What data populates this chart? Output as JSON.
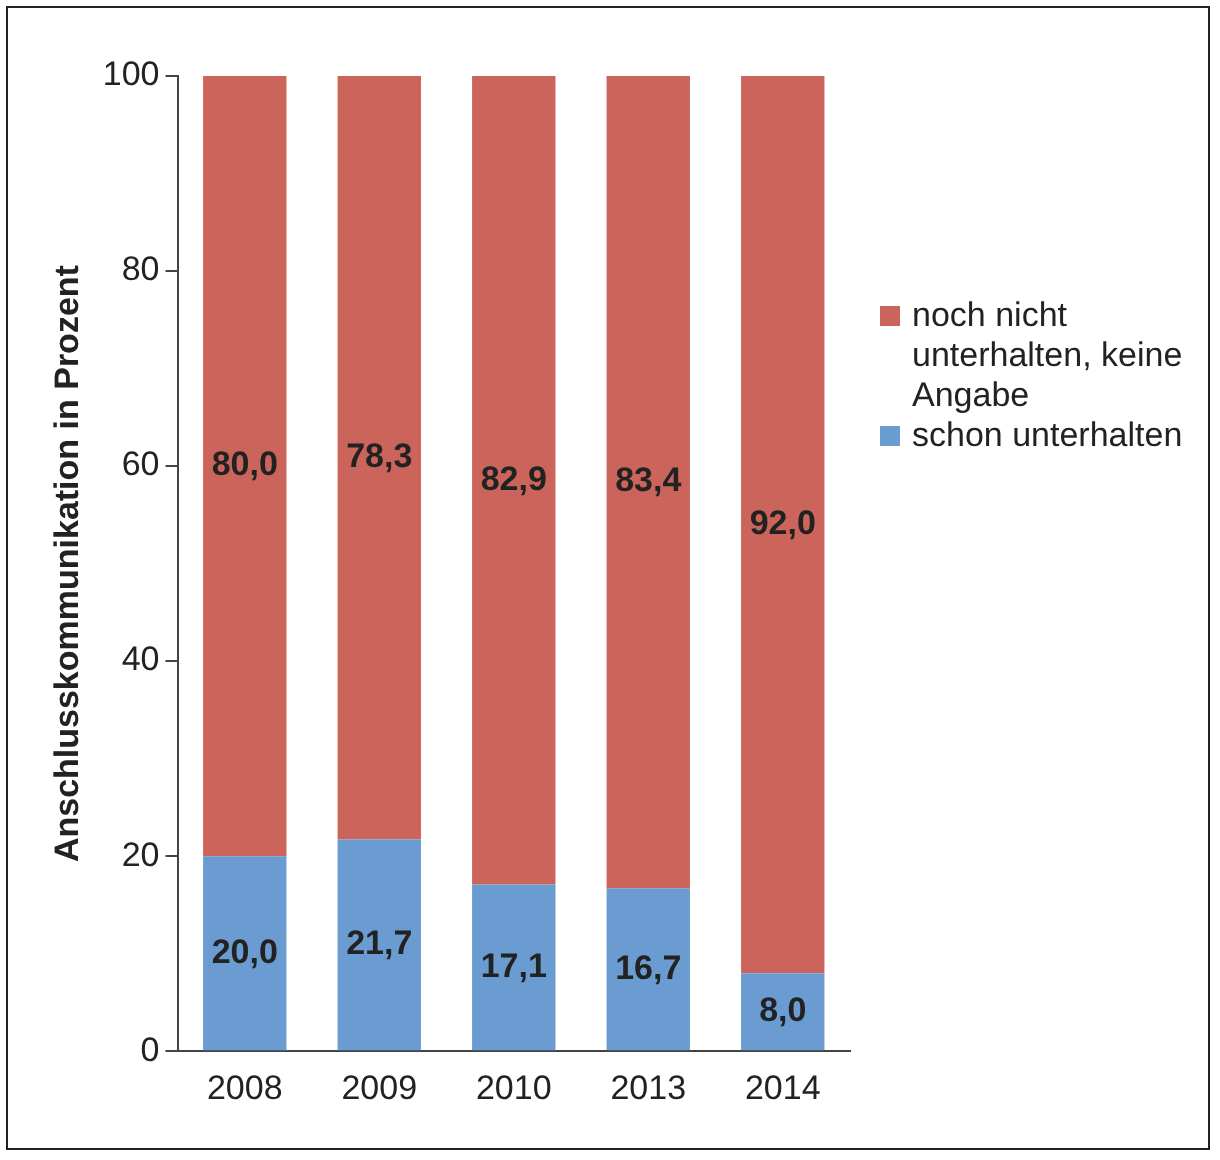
{
  "chart_data": {
    "type": "bar",
    "stacked": true,
    "ylabel": "Anschlusskommunikation in Prozent",
    "categories": [
      "2008",
      "2009",
      "2010",
      "2013",
      "2014"
    ],
    "series": [
      {
        "name": "schon unterhalten",
        "color": "#6a9bd1",
        "values": [
          20.0,
          21.7,
          17.1,
          16.7,
          8.0
        ],
        "value_labels": [
          "20,0",
          "21,7",
          "17,1",
          "16,7",
          "8,0"
        ]
      },
      {
        "name": "noch nicht unterhalten, keine Angabe",
        "color": "#cb645a",
        "values": [
          80.0,
          78.3,
          82.9,
          83.4,
          92.0
        ],
        "value_labels": [
          "80,0",
          "78,3",
          "82,9",
          "83,4",
          "92,0"
        ]
      }
    ],
    "ylim": [
      0,
      100
    ],
    "yticks": [
      0,
      20,
      40,
      60,
      80,
      100
    ],
    "grid": false,
    "legend": "right"
  }
}
